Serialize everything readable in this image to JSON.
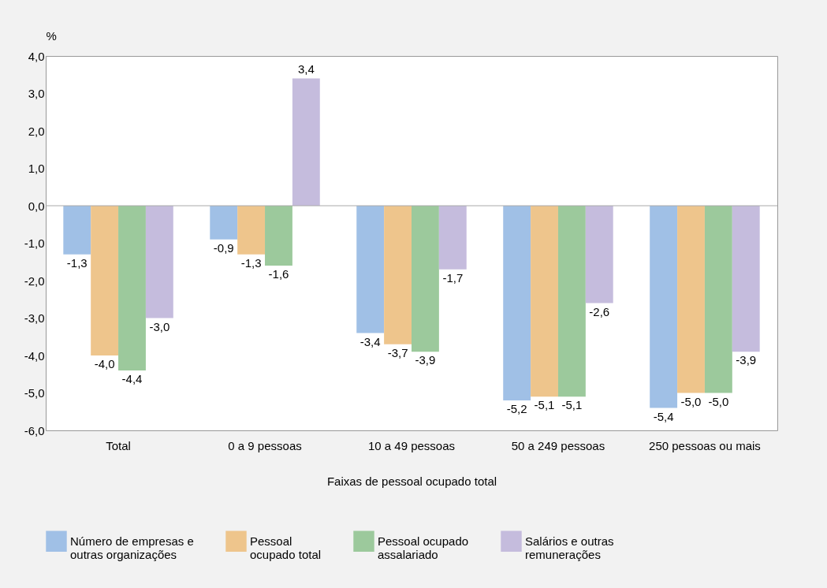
{
  "chart_data": {
    "type": "bar",
    "ylabel": "%",
    "xlabel": "Faixas de pessoal ocupado total",
    "categories": [
      "Total",
      "0 a 9 pessoas",
      "10 a 49 pessoas",
      "50 a 249 pessoas",
      "250 pessoas ou mais"
    ],
    "series": [
      {
        "name": "Número de empresas e outras organizações",
        "color": "#a0c0e6",
        "values": [
          -1.3,
          -0.9,
          -3.4,
          -5.2,
          -5.4
        ],
        "value_labels": [
          "-1,3",
          "-0,9",
          "-3,4",
          "-5,2",
          "-5,4"
        ]
      },
      {
        "name": "Pessoal ocupado total",
        "color": "#eec58c",
        "values": [
          -4.0,
          -1.3,
          -3.7,
          -5.1,
          -5.0
        ],
        "value_labels": [
          "-4,0",
          "-1,3",
          "-3,7",
          "-5,1",
          "-5,0"
        ]
      },
      {
        "name": "Pessoal ocupado assalariado",
        "color": "#9cc99c",
        "values": [
          -4.4,
          -1.6,
          -3.9,
          -5.1,
          -5.0
        ],
        "value_labels": [
          "-4,4",
          "-1,6",
          "-3,9",
          "-5,1",
          "-5,0"
        ]
      },
      {
        "name": "Salários e outras remunerações",
        "color": "#c5bcdd",
        "values": [
          -3.0,
          3.4,
          -1.7,
          -2.6,
          -3.9
        ],
        "value_labels": [
          "-3,0",
          "3,4",
          "-1,7",
          "-2,6",
          "-3,9"
        ]
      }
    ],
    "ylim": [
      -6,
      4
    ],
    "yticks": [
      {
        "value": -6,
        "label": "-6,0"
      },
      {
        "value": -5,
        "label": "-5,0"
      },
      {
        "value": -4,
        "label": "-4,0"
      },
      {
        "value": -3,
        "label": "-3,0"
      },
      {
        "value": -2,
        "label": "-2,0"
      },
      {
        "value": -1,
        "label": "-1,0"
      },
      {
        "value": 0,
        "label": "0,0"
      },
      {
        "value": 1,
        "label": "1,0"
      },
      {
        "value": 2,
        "label": "2,0"
      },
      {
        "value": 3,
        "label": "3,0"
      },
      {
        "value": 4,
        "label": "4,0"
      }
    ],
    "legend": "bottom"
  }
}
